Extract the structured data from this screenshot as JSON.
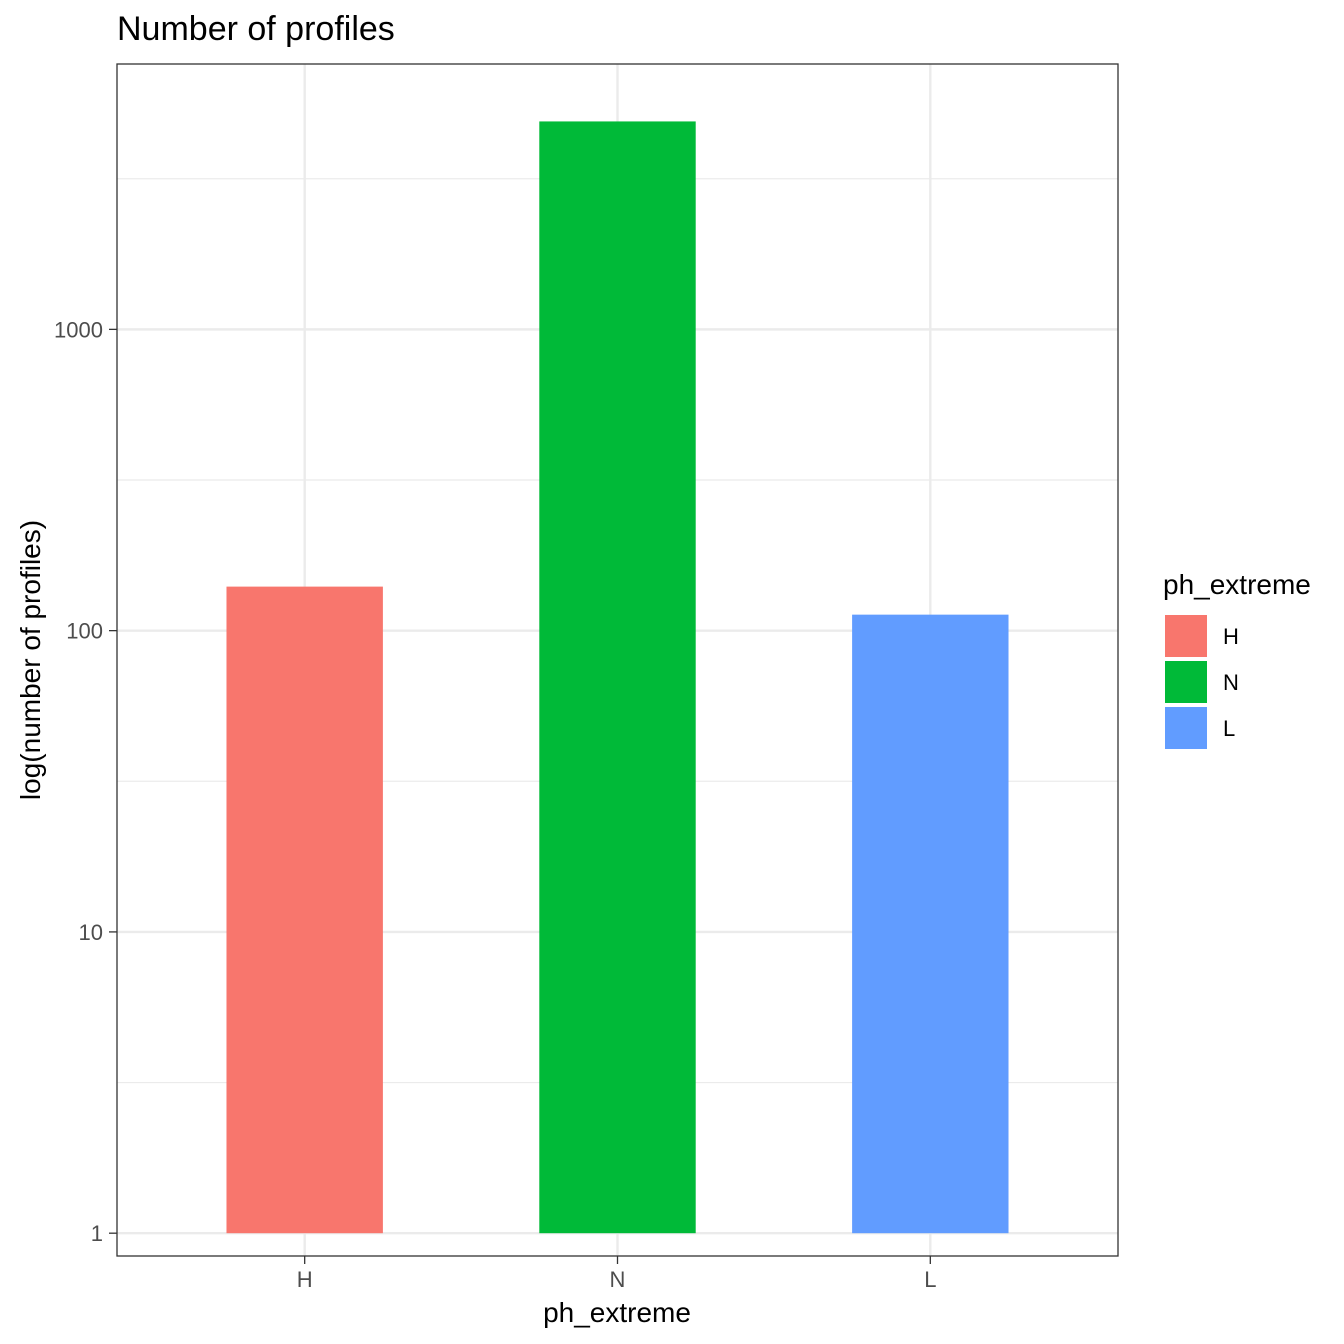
{
  "chart_data": {
    "type": "bar",
    "title": "Number of profiles",
    "xlabel": "ph_extreme",
    "ylabel": "log(number of profiles)",
    "y_scale": "log10",
    "ylim": [
      0.84,
      7600
    ],
    "y_ticks": [
      1,
      10,
      100,
      1000
    ],
    "y_tick_labels": [
      "1",
      "10",
      "100",
      "1000"
    ],
    "grid": true,
    "categories": [
      "H",
      "N",
      "L"
    ],
    "values": [
      140,
      4900,
      113
    ],
    "colors": [
      "#F8766D",
      "#00BA38",
      "#619CFF"
    ],
    "legend": {
      "title": "ph_extreme",
      "position": "right",
      "entries": [
        "H",
        "N",
        "L"
      ]
    }
  }
}
